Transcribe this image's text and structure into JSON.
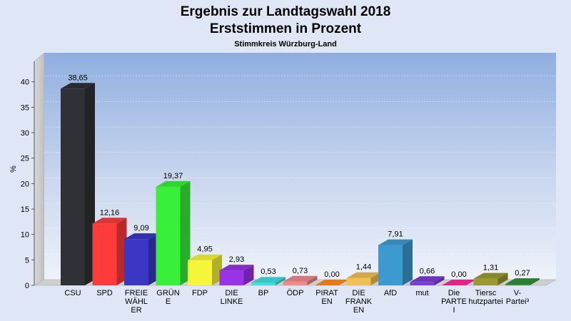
{
  "chart_data": {
    "type": "bar",
    "title": "Ergebnis zur Landtagswahl 2018",
    "subtitle": "Erststimmen in Prozent",
    "subsubtitle": "Stimmkreis Würzburg-Land",
    "ylabel": "%",
    "xlabel": "",
    "ylim": [
      0,
      45
    ],
    "yticks": [
      0,
      5,
      10,
      15,
      20,
      25,
      30,
      35,
      40
    ],
    "grid": true,
    "categories": [
      {
        "lines": [
          "CSU"
        ],
        "value": 38.65,
        "label": "38,65",
        "color": "#2f3136"
      },
      {
        "lines": [
          "SPD"
        ],
        "value": 12.16,
        "label": "12,16",
        "color": "#ff3a3a"
      },
      {
        "lines": [
          "FREIE",
          "WÄHL",
          "ER"
        ],
        "value": 9.09,
        "label": "9,09",
        "color": "#3b36c4"
      },
      {
        "lines": [
          "GRÜN",
          "E"
        ],
        "value": 19.37,
        "label": "19,37",
        "color": "#37f037"
      },
      {
        "lines": [
          "FDP"
        ],
        "value": 4.95,
        "label": "4,95",
        "color": "#f5f53a"
      },
      {
        "lines": [
          "DIE",
          "LINKE"
        ],
        "value": 2.93,
        "label": "2,93",
        "color": "#9a32e8"
      },
      {
        "lines": [
          "BP"
        ],
        "value": 0.53,
        "label": "0,53",
        "color": "#3fe0e0"
      },
      {
        "lines": [
          "ÖDP"
        ],
        "value": 0.73,
        "label": "0,73",
        "color": "#f08a8a"
      },
      {
        "lines": [
          "PIRAT",
          "EN"
        ],
        "value": 0.0,
        "label": "0,00",
        "color": "#ff8c1a"
      },
      {
        "lines": [
          "DIE",
          "FRANK",
          "EN"
        ],
        "value": 1.44,
        "label": "1,44",
        "color": "#f0c050"
      },
      {
        "lines": [
          "AfD"
        ],
        "value": 7.91,
        "label": "7,91",
        "color": "#3d9ad0"
      },
      {
        "lines": [
          "mut"
        ],
        "value": 0.66,
        "label": "0,66",
        "color": "#7a3fd8"
      },
      {
        "lines": [
          "Die",
          "PARTE",
          "I"
        ],
        "value": 0.0,
        "label": "0,00",
        "color": "#ff2a9a"
      },
      {
        "lines": [
          "Tiersc",
          "hutzpartei"
        ],
        "value": 1.31,
        "label": "1,31",
        "color": "#9a9a30"
      },
      {
        "lines": [
          "V-",
          "Partei³"
        ],
        "value": 0.27,
        "label": "0,27",
        "color": "#2f8f3a"
      }
    ]
  }
}
